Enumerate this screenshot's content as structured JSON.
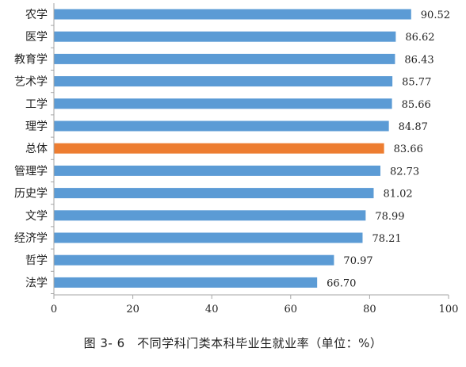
{
  "chart_data": {
    "type": "bar",
    "orientation": "horizontal",
    "title": "图 3- 6　不同学科门类本科毕业生就业率（单位：%）",
    "categories": [
      "农学",
      "医学",
      "教育学",
      "艺术学",
      "工学",
      "理学",
      "总体",
      "管理学",
      "历史学",
      "文学",
      "经济学",
      "哲学",
      "法学"
    ],
    "values": [
      90.52,
      86.62,
      86.43,
      85.77,
      85.66,
      84.87,
      83.66,
      82.73,
      81.02,
      78.99,
      78.21,
      70.97,
      66.7
    ],
    "value_labels": [
      "90.52",
      "86.62",
      "86.43",
      "85.77",
      "85.66",
      "84.87",
      "83.66",
      "82.73",
      "81.02",
      "78.99",
      "78.21",
      "70.97",
      "66.70"
    ],
    "xlim": [
      0,
      100
    ],
    "xticks": [
      0,
      20,
      40,
      60,
      80,
      100
    ],
    "xtick_labels": [
      "0",
      "20",
      "40",
      "60",
      "80",
      "100"
    ],
    "xlabel": "",
    "ylabel": "",
    "grid": false,
    "legend": "none",
    "highlight_category": "总体",
    "colors": {
      "bar": "#5b9bd5",
      "highlight": "#ed7d31",
      "axis": "#a6a6a6",
      "text": "#222222"
    }
  }
}
